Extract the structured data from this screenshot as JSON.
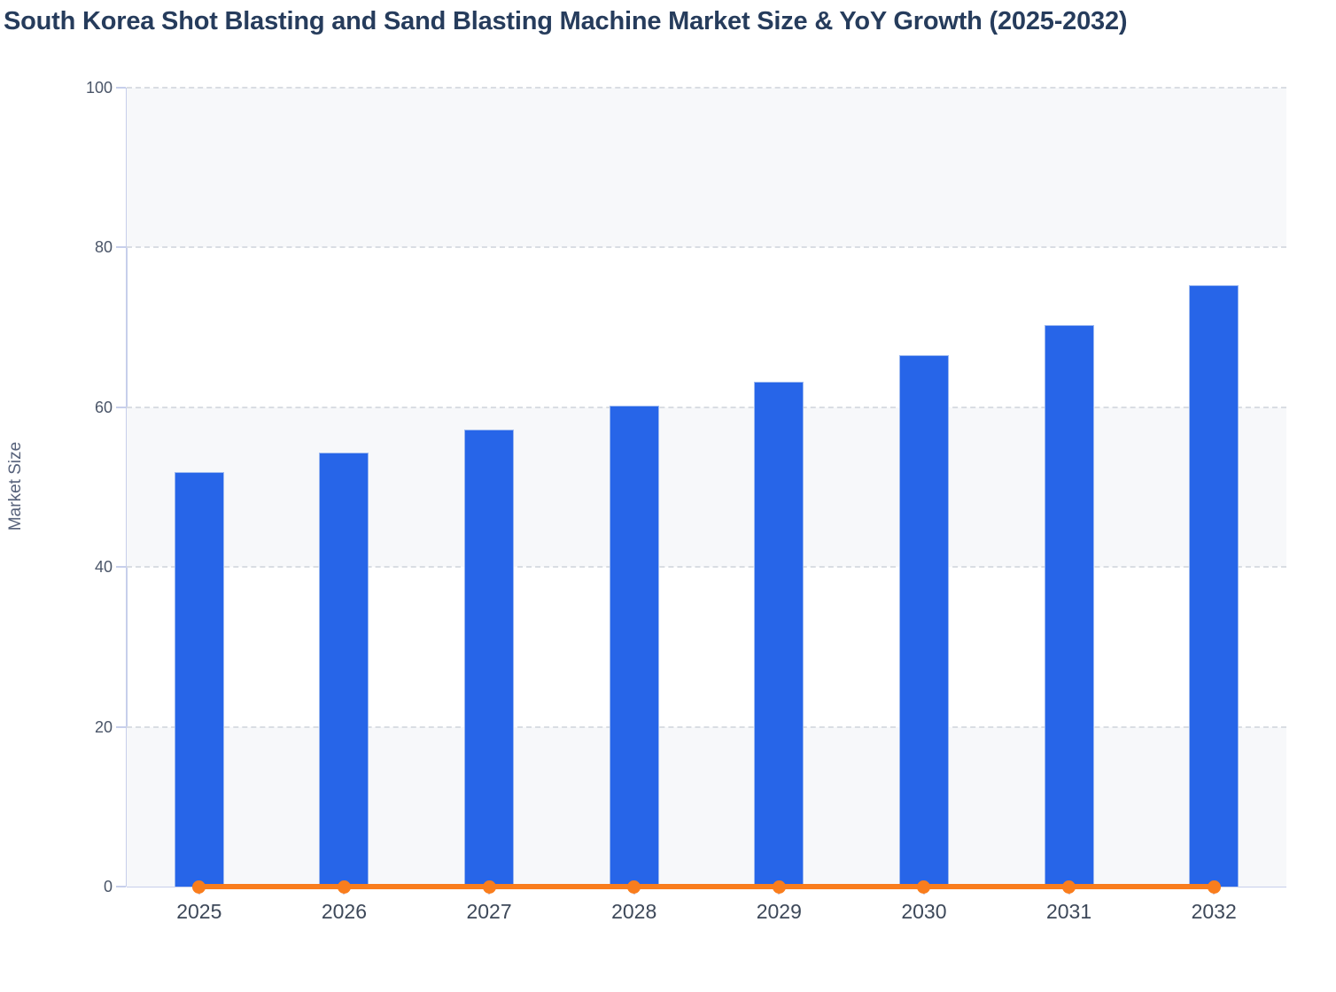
{
  "chart_data": {
    "type": "bar",
    "title": "South Korea Shot Blasting and Sand Blasting Machine Market Size & YoY Growth (2025-2032)",
    "xlabel": "",
    "ylabel": "Market Size",
    "categories": [
      "2025",
      "2026",
      "2027",
      "2028",
      "2029",
      "2030",
      "2031",
      "2032"
    ],
    "series": [
      {
        "name": "Market Size",
        "type": "bar",
        "values": [
          51.9,
          54.3,
          57.2,
          60.2,
          63.2,
          66.5,
          70.3,
          75.3
        ]
      },
      {
        "name": "YoY Growth",
        "type": "line",
        "values": [
          0,
          0,
          0,
          0,
          0,
          0,
          0,
          0
        ]
      }
    ],
    "ylim": [
      0,
      100
    ],
    "yticks": [
      0,
      20,
      40,
      60,
      80,
      100
    ],
    "grid": "horizontal-dashed",
    "legend": "none",
    "plot_bands": "alternating horizontal stripes every 20 units, shaded on 0-20, 40-60, 80-100"
  },
  "style": {
    "bar_color": "#2765e8",
    "bar_border_color": "#9bb8f0",
    "line_color": "#f97d1d",
    "marker_color": "#f97d1d",
    "band_color": "#f7f8fa",
    "grid_color": "#d9dde3",
    "axis_color": "#c7cfeb",
    "title_color": "#263c5c",
    "ytick_label_color": "#4a5568",
    "xtick_label_color": "#3d4859",
    "axis_title_color": "#56617a",
    "background_color": "#ffffff"
  }
}
